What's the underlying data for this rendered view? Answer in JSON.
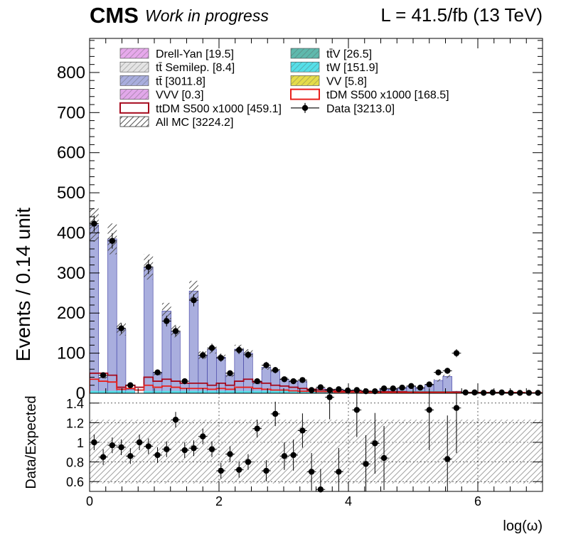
{
  "header": {
    "experiment": "CMS",
    "status": "Work in progress",
    "lumi": "L = 41.5/fb (13 TeV)"
  },
  "legend": {
    "entries": [
      {
        "label": "Drell-Yan [19.5]",
        "style": "fill",
        "color": "#e7a9ec"
      },
      {
        "label": "tt̄V [26.5]",
        "style": "fill",
        "color": "#5fb9ad"
      },
      {
        "label": "tt̄ Semilep. [8.4]",
        "style": "fill",
        "color": "#e4e4e4"
      },
      {
        "label": "tW [151.9]",
        "style": "fill",
        "color": "#55dfe8"
      },
      {
        "label": "tt̄ [3011.8]",
        "style": "fill",
        "color": "#a9aede"
      },
      {
        "label": "VV [5.8]",
        "style": "fill",
        "color": "#e5dc4a"
      },
      {
        "label": "VVV [0.3]",
        "style": "fill",
        "color": "#e2a8ea"
      },
      {
        "label": "tDM S500 x1000 [168.5]",
        "style": "outline",
        "color": "#e8201c"
      },
      {
        "label": "ttDM S500 x1000 [459.1]",
        "style": "outline",
        "color": "#a5081c"
      },
      {
        "label": "Data [3213.0]",
        "style": "marker",
        "color": "#000000"
      },
      {
        "label": "All MC [3224.2]",
        "style": "hatch",
        "color": "#555555"
      }
    ]
  },
  "colors": {
    "ttbar": "#a9aede",
    "tW": "#55dfe8",
    "ttV": "#5fb9ad",
    "ttDM": "#a5081c",
    "tDM": "#e8201c",
    "data": "#000000",
    "hatch": "#555555"
  },
  "chart_data": {
    "type": "bar",
    "xlabel": "log(ω)",
    "xlim": [
      0,
      7
    ],
    "bin_width": 0.14,
    "x_ticks": [
      "0",
      "2",
      "4",
      "6"
    ],
    "main": {
      "ylabel": "Events / 0.14 unit",
      "ylim": [
        0,
        885
      ],
      "y_ticks": [
        "0",
        "100",
        "200",
        "300",
        "400",
        "500",
        "600",
        "700",
        "800"
      ],
      "series": [
        {
          "name": "tt̄ [3011.8]",
          "values": [
            420,
            40,
            385,
            160,
            10,
            0,
            315,
            50,
            205,
            155,
            25,
            255,
            95,
            110,
            90,
            45,
            110,
            100,
            25,
            65,
            55,
            35,
            30,
            30,
            10,
            12,
            10,
            10,
            8,
            8,
            5,
            5,
            10,
            10,
            12,
            18,
            12,
            20,
            32,
            42,
            5,
            3,
            3,
            3,
            3,
            3,
            3,
            3,
            2,
            2
          ]
        },
        {
          "name": "Data [3213.0]",
          "values": [
            423,
            45,
            380,
            162,
            20,
            0,
            315,
            52,
            180,
            155,
            30,
            232,
            95,
            113,
            88,
            50,
            108,
            96,
            30,
            70,
            58,
            35,
            30,
            33,
            8,
            15,
            8,
            10,
            7,
            8,
            5,
            5,
            12,
            12,
            14,
            18,
            14,
            22,
            52,
            56,
            100,
            2,
            2,
            1,
            2,
            2,
            1,
            1,
            1,
            1
          ]
        },
        {
          "name": "ttDM S500 x1000 [459.1]",
          "values": [
            50,
            50,
            45,
            15,
            20,
            15,
            40,
            30,
            35,
            30,
            25,
            25,
            25,
            20,
            25,
            20,
            30,
            35,
            28,
            25,
            20,
            18,
            15,
            12,
            10,
            8,
            8,
            6,
            5,
            5,
            5,
            4,
            4,
            4,
            4,
            3,
            3,
            3,
            3,
            3,
            3,
            2,
            2,
            2,
            2,
            2,
            2,
            2,
            1,
            1
          ]
        },
        {
          "name": "tDM S500 x1000 [168.5]",
          "values": [
            35,
            30,
            28,
            10,
            12,
            8,
            20,
            15,
            18,
            15,
            12,
            12,
            12,
            10,
            12,
            10,
            15,
            15,
            12,
            10,
            8,
            8,
            6,
            5,
            5,
            4,
            4,
            3,
            3,
            3,
            2,
            2,
            2,
            2,
            2,
            2,
            2,
            2,
            2,
            2,
            1,
            1,
            1,
            1,
            1,
            1,
            1,
            1,
            1,
            1
          ]
        }
      ]
    },
    "ratio": {
      "ylabel": "Data/Expected",
      "ylim": [
        0.5,
        1.5
      ],
      "y_ticks": [
        "0.6",
        "0.8",
        "1",
        "1.2",
        "1.4"
      ],
      "points": [
        {
          "x": 0.07,
          "y": 1.0
        },
        {
          "x": 0.21,
          "y": 0.85
        },
        {
          "x": 0.35,
          "y": 0.97
        },
        {
          "x": 0.49,
          "y": 0.95
        },
        {
          "x": 0.63,
          "y": 0.86
        },
        {
          "x": 0.77,
          "y": 1.0
        },
        {
          "x": 0.91,
          "y": 0.96
        },
        {
          "x": 1.05,
          "y": 0.87
        },
        {
          "x": 1.19,
          "y": 0.93
        },
        {
          "x": 1.33,
          "y": 1.23
        },
        {
          "x": 1.47,
          "y": 0.92
        },
        {
          "x": 1.61,
          "y": 0.94
        },
        {
          "x": 1.75,
          "y": 1.06
        },
        {
          "x": 1.89,
          "y": 0.93
        },
        {
          "x": 2.03,
          "y": 0.71
        },
        {
          "x": 2.17,
          "y": 0.88
        },
        {
          "x": 2.31,
          "y": 0.72
        },
        {
          "x": 2.45,
          "y": 0.8
        },
        {
          "x": 2.59,
          "y": 1.14
        },
        {
          "x": 2.73,
          "y": 0.71
        },
        {
          "x": 2.87,
          "y": 1.29
        },
        {
          "x": 3.01,
          "y": 0.86
        },
        {
          "x": 3.15,
          "y": 0.87
        },
        {
          "x": 3.29,
          "y": 1.12
        },
        {
          "x": 3.43,
          "y": 0.7
        },
        {
          "x": 3.57,
          "y": 0.52
        },
        {
          "x": 3.71,
          "y": 1.46
        },
        {
          "x": 3.85,
          "y": 0.7
        },
        {
          "x": 4.13,
          "y": 1.33
        },
        {
          "x": 4.27,
          "y": 0.78
        },
        {
          "x": 4.41,
          "y": 0.99
        },
        {
          "x": 4.55,
          "y": 0.84
        },
        {
          "x": 5.25,
          "y": 1.33
        },
        {
          "x": 5.53,
          "y": 0.83
        },
        {
          "x": 5.67,
          "y": 1.35
        }
      ]
    }
  }
}
